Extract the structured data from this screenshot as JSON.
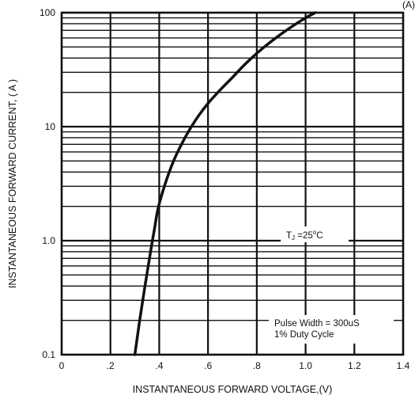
{
  "chart_data": {
    "type": "line",
    "title": "",
    "xlabel": "INSTANTANEOUS FORWARD VOLTAGE,(V)",
    "ylabel": "INSTANTANEOUS FORWARD CURRENT, ( A )",
    "xlim": [
      0,
      1.4
    ],
    "ylim": [
      0.1,
      100
    ],
    "y_scale": "log",
    "grid": true,
    "x_ticks": [
      0,
      0.2,
      0.4,
      0.6,
      0.8,
      1.0,
      1.2,
      1.4
    ],
    "x_tick_labels": [
      "0",
      ".2",
      ".4",
      ".6",
      ".8",
      "1.0",
      "1.2",
      "1.4"
    ],
    "y_ticks": [
      0.1,
      1,
      10,
      100
    ],
    "y_tick_labels": [
      "0.1",
      "1.0",
      "10",
      "100"
    ],
    "series": [
      {
        "x": [
          0.3,
          0.32,
          0.34,
          0.36,
          0.38,
          0.4,
          0.45,
          0.5,
          0.55,
          0.6,
          0.65,
          0.7,
          0.75,
          0.8,
          0.85,
          0.9,
          0.95,
          1.0,
          1.04
        ],
        "y": [
          0.1,
          0.2,
          0.38,
          0.7,
          1.25,
          2.1,
          4.5,
          7.6,
          11.5,
          16.0,
          21.0,
          27.0,
          35.0,
          44.0,
          54.0,
          65.0,
          77.0,
          90.0,
          100.0
        ]
      }
    ],
    "annotations": {
      "temperature_main": "TJ =25",
      "temperature_sub": "J",
      "temperature_sup": "o",
      "temperature_unit": "C",
      "pulse_line1": "Pulse Width = 300uS",
      "pulse_line2": "1% Duty Cycle"
    },
    "corner_mark": "(A)"
  }
}
